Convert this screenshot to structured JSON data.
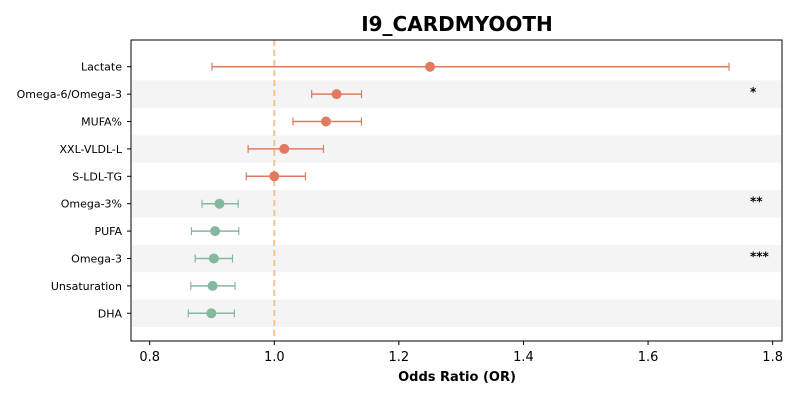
{
  "chart_data": {
    "type": "forest",
    "title": "I9_CARDMYOOTH",
    "xlabel": "Odds Ratio (OR)",
    "xlim": [
      0.77,
      1.815
    ],
    "xticks": [
      0.8,
      1.0,
      1.2,
      1.4,
      1.6,
      1.8
    ],
    "xtick_labels": [
      "0.8",
      "1.0",
      "1.2",
      "1.4",
      "1.6",
      "1.8"
    ],
    "reference_line": 1.0,
    "reference_color": "#f5c48a",
    "band_color": "#f4f4f4",
    "colors": {
      "increased": "#e07b62",
      "decreased": "#85b8a0"
    },
    "rows": [
      {
        "label": "Lactate",
        "or": 1.25,
        "ci_low": 0.9,
        "ci_high": 1.73,
        "direction": "increased",
        "sig": ""
      },
      {
        "label": "Omega-6/Omega-3",
        "or": 1.1,
        "ci_low": 1.06,
        "ci_high": 1.14,
        "direction": "increased",
        "sig": "*"
      },
      {
        "label": "MUFA%",
        "or": 1.083,
        "ci_low": 1.03,
        "ci_high": 1.14,
        "direction": "increased",
        "sig": ""
      },
      {
        "label": "XXL-VLDL-L",
        "or": 1.016,
        "ci_low": 0.958,
        "ci_high": 1.079,
        "direction": "increased",
        "sig": ""
      },
      {
        "label": "S-LDL-TG",
        "or": 1.0,
        "ci_low": 0.955,
        "ci_high": 1.05,
        "direction": "increased",
        "sig": ""
      },
      {
        "label": "Omega-3%",
        "or": 0.912,
        "ci_low": 0.884,
        "ci_high": 0.942,
        "direction": "decreased",
        "sig": "**"
      },
      {
        "label": "PUFA",
        "or": 0.905,
        "ci_low": 0.867,
        "ci_high": 0.943,
        "direction": "decreased",
        "sig": ""
      },
      {
        "label": "Omega-3",
        "or": 0.903,
        "ci_low": 0.873,
        "ci_high": 0.933,
        "direction": "decreased",
        "sig": "***"
      },
      {
        "label": "Unsaturation",
        "or": 0.901,
        "ci_low": 0.866,
        "ci_high": 0.937,
        "direction": "decreased",
        "sig": ""
      },
      {
        "label": "DHA",
        "or": 0.899,
        "ci_low": 0.862,
        "ci_high": 0.936,
        "direction": "decreased",
        "sig": ""
      }
    ]
  }
}
